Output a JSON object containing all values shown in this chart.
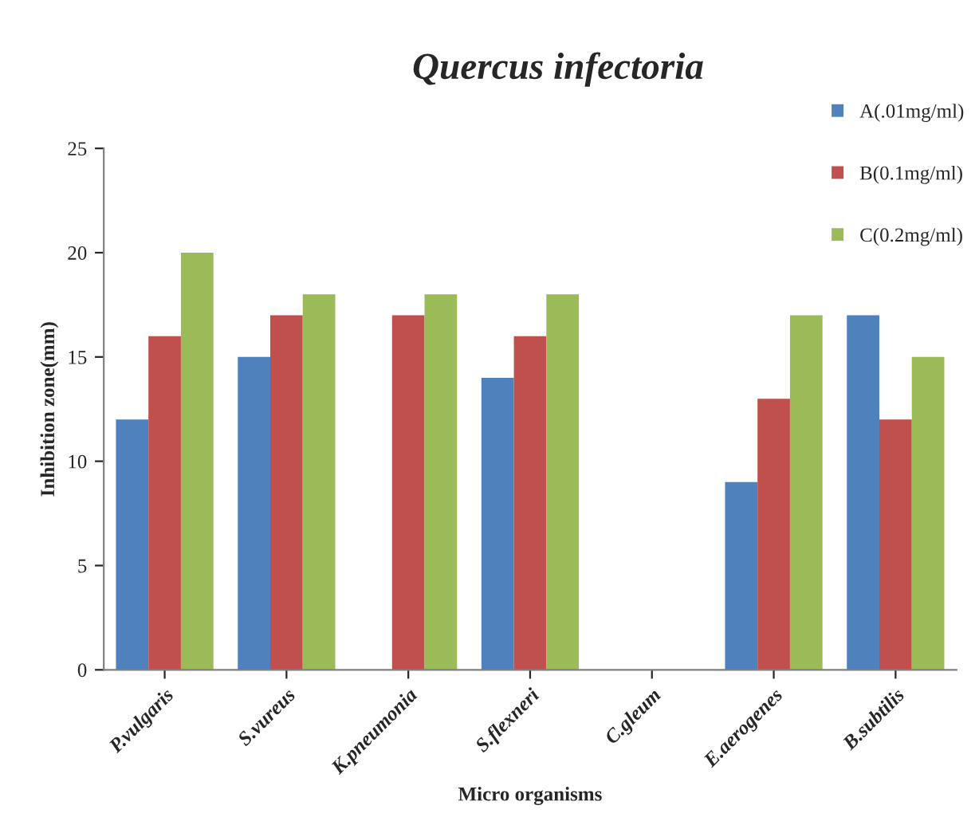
{
  "chart_data": {
    "type": "bar",
    "title": "Quercus infectoria",
    "xlabel": "Micro organisms",
    "ylabel": "Inhibition zone(mm)",
    "categories": [
      "P.vulgaris",
      "S.vureus",
      "K.pneumonia",
      "S.flexneri",
      "C.gleum",
      "E.aerogenes",
      "B.subtilis"
    ],
    "series": [
      {
        "name": "A(.01mg/ml)",
        "color": "#4f81bd",
        "values": [
          12,
          15,
          null,
          14,
          null,
          9,
          17
        ]
      },
      {
        "name": "B(0.1mg/ml)",
        "color": "#c0504d",
        "values": [
          16,
          17,
          17,
          16,
          null,
          13,
          12
        ]
      },
      {
        "name": "C(0.2mg/ml)",
        "color": "#9bbb59",
        "values": [
          20,
          18,
          18,
          18,
          null,
          17,
          15
        ]
      }
    ],
    "ylim": [
      0,
      25
    ],
    "yticks": [
      0,
      5,
      10,
      15,
      20,
      25
    ],
    "grid": false,
    "legend": "top right"
  }
}
